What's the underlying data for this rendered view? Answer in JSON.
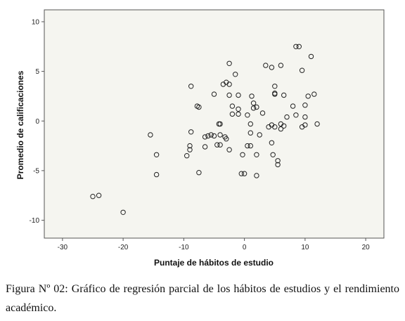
{
  "chart_data": {
    "type": "scatter",
    "xlabel": "Puntaje de hábitos de estudio",
    "ylabel": "Promedio de calificaciones",
    "xlim": [
      -33,
      23
    ],
    "ylim": [
      -11.8,
      11.2
    ],
    "xticks": [
      -30,
      -20,
      -10,
      0,
      10,
      20
    ],
    "yticks": [
      10,
      5,
      0,
      -5,
      -10
    ],
    "grid": false,
    "colors": {
      "plot_background": "#f5f5f0",
      "marker_stroke": "#222222"
    },
    "points": [
      [
        -25,
        -7.6
      ],
      [
        -24,
        -7.5
      ],
      [
        -20,
        -9.2
      ],
      [
        -15.5,
        -1.4
      ],
      [
        -14.5,
        -3.4
      ],
      [
        -14.5,
        -5.4
      ],
      [
        -9,
        -2.5
      ],
      [
        -9,
        -2.9
      ],
      [
        -9.5,
        -3.5
      ],
      [
        -8.8,
        -1.1
      ],
      [
        -8.8,
        3.5
      ],
      [
        -7.8,
        1.5
      ],
      [
        -7.5,
        1.4
      ],
      [
        -7.5,
        -5.2
      ],
      [
        -6.5,
        -1.6
      ],
      [
        -6.5,
        -2.6
      ],
      [
        -6,
        -1.5
      ],
      [
        -5.5,
        -1.4
      ],
      [
        -5,
        2.7
      ],
      [
        -5,
        -1.5
      ],
      [
        -4.5,
        -2.4
      ],
      [
        -4,
        -2.4
      ],
      [
        -4,
        -1.4
      ],
      [
        -4,
        -0.3
      ],
      [
        -4.2,
        -0.3
      ],
      [
        -3.5,
        3.7
      ],
      [
        -3.2,
        -1.6
      ],
      [
        -3,
        -1.8
      ],
      [
        -3,
        3.9
      ],
      [
        -2.5,
        3.7
      ],
      [
        -2.5,
        2.6
      ],
      [
        -2.5,
        -2.9
      ],
      [
        -2.5,
        5.8
      ],
      [
        -2,
        1.5
      ],
      [
        -2,
        0.7
      ],
      [
        -1.5,
        4.7
      ],
      [
        -1,
        1.2
      ],
      [
        -1,
        2.6
      ],
      [
        -1,
        0.7
      ],
      [
        -0.5,
        -5.3
      ],
      [
        -0.3,
        -3.4
      ],
      [
        0,
        -5.3
      ],
      [
        0.5,
        0.6
      ],
      [
        0.5,
        -2.5
      ],
      [
        1,
        -1.2
      ],
      [
        1,
        -2.5
      ],
      [
        1,
        -0.3
      ],
      [
        1.2,
        2.5
      ],
      [
        1.5,
        1.3
      ],
      [
        1.5,
        1.8
      ],
      [
        2,
        1.4
      ],
      [
        2,
        -3.4
      ],
      [
        2,
        -5.5
      ],
      [
        2.5,
        -1.4
      ],
      [
        3,
        0.8
      ],
      [
        3.5,
        5.6
      ],
      [
        4,
        -0.6
      ],
      [
        4.5,
        -0.4
      ],
      [
        4.5,
        -2.2
      ],
      [
        4.5,
        5.4
      ],
      [
        4.7,
        -3.4
      ],
      [
        5,
        3.5
      ],
      [
        5,
        2.8
      ],
      [
        5,
        2.7
      ],
      [
        5,
        -0.6
      ],
      [
        5.5,
        -4.4
      ],
      [
        5.5,
        -4
      ],
      [
        6,
        -0.3
      ],
      [
        6,
        -0.8
      ],
      [
        6,
        5.6
      ],
      [
        6.5,
        2.6
      ],
      [
        6.5,
        -0.5
      ],
      [
        7,
        0.4
      ],
      [
        8,
        1.5
      ],
      [
        8.5,
        0.6
      ],
      [
        8.5,
        7.5
      ],
      [
        9,
        7.5
      ],
      [
        9.5,
        5.1
      ],
      [
        9.5,
        -0.6
      ],
      [
        10,
        1.6
      ],
      [
        10,
        -0.4
      ],
      [
        10,
        0.4
      ],
      [
        10.5,
        2.5
      ],
      [
        11,
        6.5
      ],
      [
        11.5,
        2.7
      ],
      [
        12,
        -0.3
      ]
    ]
  },
  "caption": "Figura Nº 02: Gráfico de regresión parcial de los hábitos de estudios y el rendimiento académico."
}
